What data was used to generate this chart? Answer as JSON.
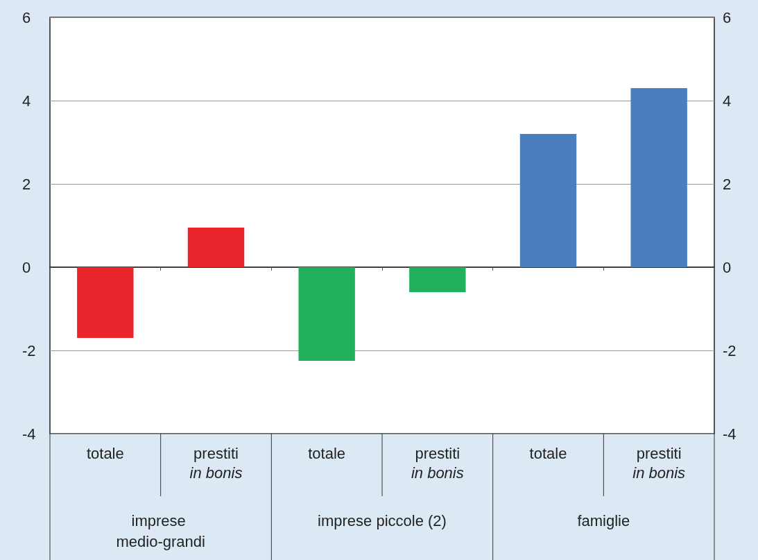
{
  "chart_data": {
    "type": "bar",
    "categories": [
      "totale",
      "prestiti in bonis",
      "totale",
      "prestiti in bonis",
      "totale",
      "prestiti in bonis"
    ],
    "values": [
      -1.7,
      0.95,
      -2.25,
      -0.6,
      3.2,
      4.3
    ],
    "colors": [
      "#e8262b",
      "#e8262b",
      "#22b05a",
      "#22b05a",
      "#4a7fbf",
      "#4a7fbf"
    ],
    "annotations": [
      "imprese medio-grandi",
      "imprese piccole (2)",
      "famiglie"
    ],
    "ylim": [
      -4,
      6
    ],
    "yticks": [
      -4,
      -2,
      0,
      2,
      4,
      6
    ],
    "y2lim": [
      -4,
      6
    ],
    "y2ticks": [
      -4,
      -2,
      0,
      2,
      4,
      6
    ],
    "grid": "y"
  }
}
